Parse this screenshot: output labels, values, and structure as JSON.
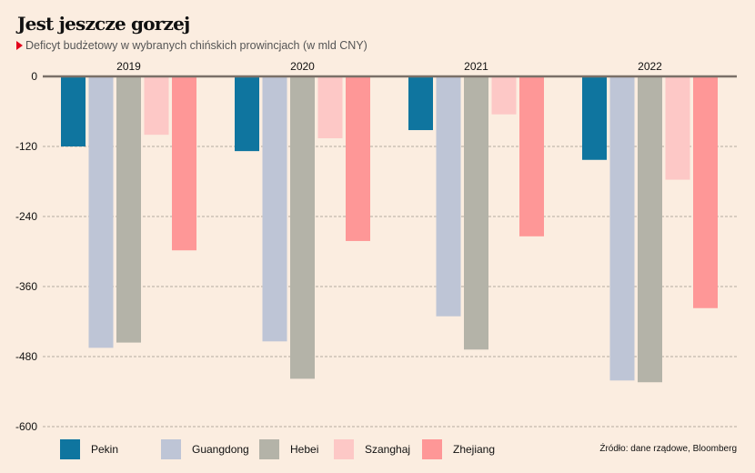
{
  "header": {
    "title": "Jest jeszcze gorzej",
    "subtitle": "Deficyt budżetowy w wybranych chińskich prowincjach (w mld CNY)"
  },
  "source": "Źródło: dane rządowe, Bloomberg",
  "colors": {
    "background": "#fbede0",
    "accent_marker": "#e3001b",
    "axis": "#7a7068",
    "grid": "#b5aaa0"
  },
  "chart_data": {
    "type": "bar",
    "title": "Jest jeszcze gorzej",
    "subtitle": "Deficyt budżetowy w wybranych chińskich prowincjach (w mld CNY)",
    "xlabel": "",
    "ylabel": "",
    "categories": [
      "2019",
      "2020",
      "2021",
      "2022"
    ],
    "ylim": [
      -600,
      0
    ],
    "yticks": [
      0,
      -120,
      -240,
      -360,
      -480,
      -600
    ],
    "ytick_labels": [
      "0",
      "-120",
      "-240",
      "-360",
      "-480",
      "-600"
    ],
    "grid": true,
    "legend_position": "bottom-left",
    "series": [
      {
        "name": "Pekin",
        "color": "#0f759f",
        "values": [
          -120,
          -128,
          -92,
          -143
        ]
      },
      {
        "name": "Guangdong",
        "color": "#bec5d6",
        "values": [
          -465,
          -454,
          -411,
          -521
        ]
      },
      {
        "name": "Hebei",
        "color": "#b4b3a8",
        "values": [
          -456,
          -518,
          -468,
          -524
        ]
      },
      {
        "name": "Szanghaj",
        "color": "#fdc8c6",
        "values": [
          -100,
          -106,
          -65,
          -177
        ]
      },
      {
        "name": "Zhejiang",
        "color": "#fe9797",
        "values": [
          -298,
          -282,
          -274,
          -397
        ]
      }
    ]
  }
}
